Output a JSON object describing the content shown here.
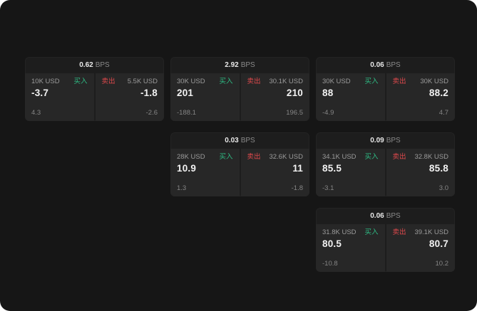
{
  "labels": {
    "bps": "BPS",
    "buy": "买入",
    "sell": "卖出"
  },
  "colors": {
    "background": "#161616",
    "card": "#1d1d1d",
    "panel": "#272727",
    "buy": "#2ebd85",
    "sell": "#e0494c"
  },
  "cards": [
    {
      "spread": "0.62",
      "buy": {
        "size": "10K USD",
        "price": "-3.7",
        "sub": "4.3"
      },
      "sell": {
        "size": "5.5K USD",
        "price": "-1.8",
        "sub": "-2.6"
      }
    },
    {
      "spread": "2.92",
      "buy": {
        "size": "30K USD",
        "price": "201",
        "sub": "-188.1"
      },
      "sell": {
        "size": "30.1K USD",
        "price": "210",
        "sub": "196.5"
      }
    },
    {
      "spread": "0.06",
      "buy": {
        "size": "30K USD",
        "price": "88",
        "sub": "-4.9"
      },
      "sell": {
        "size": "30K USD",
        "price": "88.2",
        "sub": "4.7"
      }
    },
    {
      "spread": "0.03",
      "buy": {
        "size": "28K USD",
        "price": "10.9",
        "sub": "1.3"
      },
      "sell": {
        "size": "32.6K USD",
        "price": "11",
        "sub": "-1.8"
      }
    },
    {
      "spread": "0.09",
      "buy": {
        "size": "34.1K USD",
        "price": "85.5",
        "sub": "-3.1"
      },
      "sell": {
        "size": "32.8K USD",
        "price": "85.8",
        "sub": "3.0"
      }
    },
    {
      "spread": "0.06",
      "buy": {
        "size": "31.8K USD",
        "price": "80.5",
        "sub": "-10.8"
      },
      "sell": {
        "size": "39.1K USD",
        "price": "80.7",
        "sub": "10.2"
      }
    }
  ]
}
